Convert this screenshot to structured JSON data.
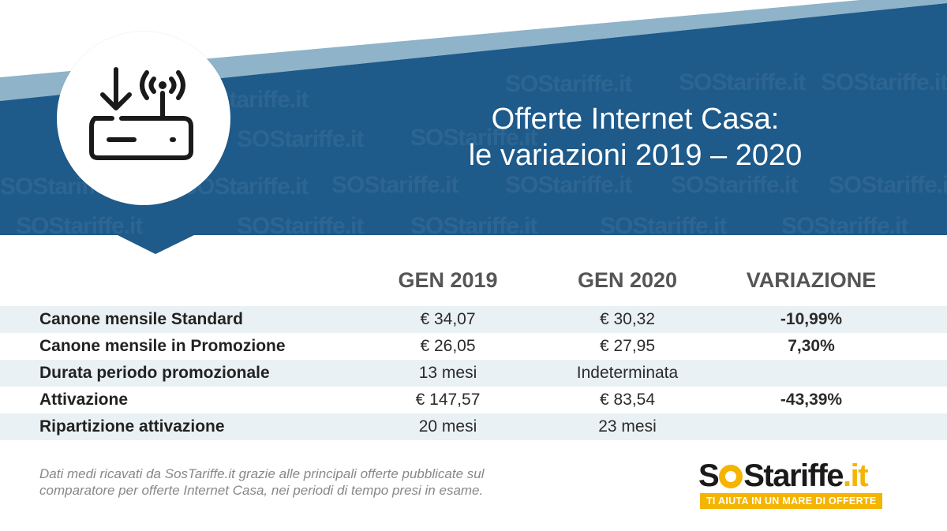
{
  "header": {
    "title_line1": "Offerte Internet Casa:",
    "title_line2": "le variazioni 2019 – 2020",
    "icon": "router-download-icon",
    "watermark": "SOStariffe.it",
    "colors": {
      "banner": "#1e5a8a",
      "stripe": "#8fb3c9"
    }
  },
  "table": {
    "columns": [
      "GEN 2019",
      "GEN 2020",
      "VARIAZIONE"
    ],
    "rows": [
      {
        "label": "Canone mensile Standard",
        "gen2019": "€ 34,07",
        "gen2020": "€ 30,32",
        "variazione": "-10,99%",
        "trend": "down"
      },
      {
        "label": "Canone mensile in Promozione",
        "gen2019": "€ 26,05",
        "gen2020": "€ 27,95",
        "variazione": "7,30%",
        "trend": "up"
      },
      {
        "label": "Durata periodo promozionale",
        "gen2019": "13 mesi",
        "gen2020": "Indeterminata",
        "variazione": "",
        "trend": ""
      },
      {
        "label": "Attivazione",
        "gen2019": "€ 147,57",
        "gen2020": "€ 83,54",
        "variazione": "-43,39%",
        "trend": "down"
      },
      {
        "label": "Ripartizione attivazione",
        "gen2019": "20 mesi",
        "gen2020": "23 mesi",
        "variazione": "",
        "trend": ""
      }
    ],
    "colors": {
      "down": "#2aa33a",
      "up": "#e02020",
      "row_shade": "#eaf1f4"
    }
  },
  "footnote": {
    "line1": "Dati medi ricavati da SosTariffe.it grazie alle principali offerte pubblicate sul",
    "line2": "comparatore per offerte Internet Casa, nei periodi di tempo presi in esame."
  },
  "logo": {
    "part1": "S",
    "part2": "S",
    "part3": "tariffe",
    "part4": ".it",
    "tagline": "TI AIUTA IN UN MARE DI OFFERTE",
    "accent": "#f4b400"
  }
}
